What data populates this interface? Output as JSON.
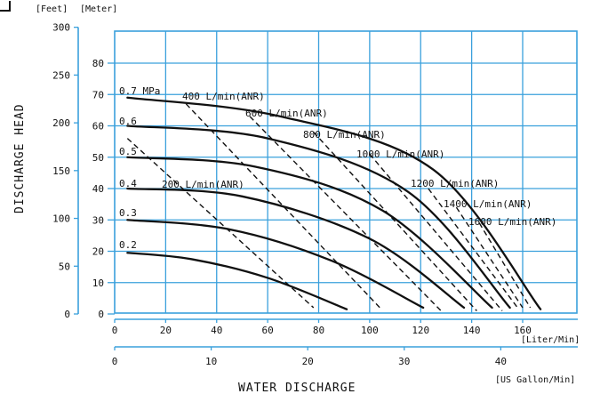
{
  "chart_data": {
    "type": "line",
    "unit_labels": {
      "feet": "[Feet]",
      "meter": "[Meter]",
      "x_liter": "[Liter/Min]",
      "x_gallon": "[US Gallon/Min]"
    },
    "xlabel": "WATER  DISCHARGE",
    "ylabel": "DISCHARGE  HEAD",
    "x_ticks_lpm": [
      "0",
      "20",
      "40",
      "60",
      "80",
      "100",
      "120",
      "140",
      "160"
    ],
    "x_ticks_gal": [
      "0",
      "10",
      "20",
      "30",
      "40"
    ],
    "y_ticks_m": [
      "0",
      "10",
      "20",
      "30",
      "40",
      "50",
      "60",
      "70",
      "80"
    ],
    "y_ticks_ft": [
      "0",
      "50",
      "100",
      "150",
      "200",
      "250",
      "300"
    ],
    "xlim_lpm": [
      0,
      175
    ],
    "ylim_m": [
      0,
      90
    ],
    "grid": true,
    "pressure_curves": [
      {
        "name": "0.2",
        "points": [
          [
            5,
            19.5
          ],
          [
            30,
            17.5
          ],
          [
            60,
            11.5
          ],
          [
            91,
            1.5
          ]
        ]
      },
      {
        "name": "0.3",
        "points": [
          [
            5,
            30
          ],
          [
            45,
            27
          ],
          [
            85,
            17
          ],
          [
            121,
            2
          ]
        ]
      },
      {
        "name": "0.4",
        "points": [
          [
            5,
            40
          ],
          [
            50,
            37.5
          ],
          [
            100,
            24
          ],
          [
            137,
            2
          ]
        ]
      },
      {
        "name": "0.5",
        "points": [
          [
            5,
            50
          ],
          [
            55,
            47
          ],
          [
            105,
            33
          ],
          [
            148,
            2
          ]
        ]
      },
      {
        "name": "0.6",
        "points": [
          [
            5,
            60
          ],
          [
            60,
            56
          ],
          [
            115,
            39
          ],
          [
            155,
            2
          ]
        ]
      },
      {
        "name": "0.7 MPa",
        "points": [
          [
            5,
            69
          ],
          [
            65,
            63
          ],
          [
            125,
            46
          ],
          [
            167,
            1.5
          ]
        ]
      }
    ],
    "air_consumption_curves": [
      {
        "name": "200 L/min(ANR)",
        "points": [
          [
            5,
            56
          ],
          [
            78,
            2
          ]
        ]
      },
      {
        "name": "400 L/min(ANR)",
        "points": [
          [
            28,
            67
          ],
          [
            104,
            2
          ]
        ]
      },
      {
        "name": "600 L/min(ANR)",
        "points": [
          [
            53,
            63
          ],
          [
            128,
            1
          ]
        ]
      },
      {
        "name": "800 L/min(ANR)",
        "points": [
          [
            78,
            58
          ],
          [
            142,
            1
          ]
        ]
      },
      {
        "name": "1000 L/min(ANR)",
        "points": [
          [
            100,
            51
          ],
          [
            152,
            1
          ]
        ]
      },
      {
        "name": "1200 L/min(ANR)",
        "points": [
          [
            123,
            40
          ],
          [
            158,
            2
          ]
        ]
      },
      {
        "name": "1400 L/min(ANR)",
        "points": [
          [
            134,
            34
          ],
          [
            160,
            2
          ]
        ]
      },
      {
        "name": "1600 L/min(ANR)",
        "points": [
          [
            143,
            29
          ],
          [
            163,
            2
          ]
        ]
      }
    ]
  }
}
